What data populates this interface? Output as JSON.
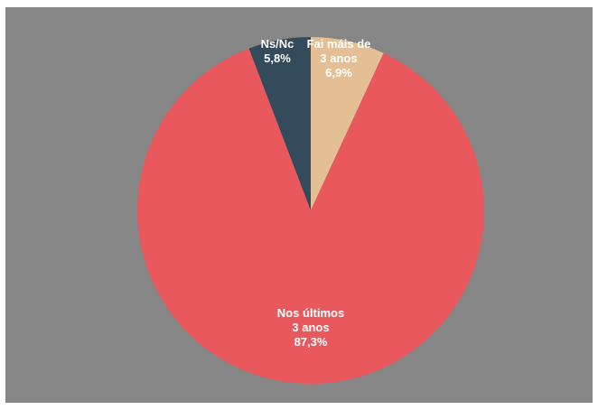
{
  "chart_data": {
    "type": "pie",
    "start_angle_deg": 0,
    "direction": "clockwise",
    "slices": [
      {
        "label_lines": [
          "Fai máis de",
          "3 anos"
        ],
        "value_label": "6,9%",
        "value": 6.9,
        "color": "#E3BF93",
        "text_color": "#ffffff"
      },
      {
        "label_lines": [
          "Nos últimos",
          "3 anos"
        ],
        "value_label": "87,3%",
        "value": 87.3,
        "color": "#E8585C",
        "text_color": "#ffffff"
      },
      {
        "label_lines": [
          "Ns/Nc"
        ],
        "value_label": "5,8%",
        "value": 5.8,
        "color": "#344B5B",
        "text_color": "#ffffff"
      }
    ],
    "background_color": "#868686"
  }
}
